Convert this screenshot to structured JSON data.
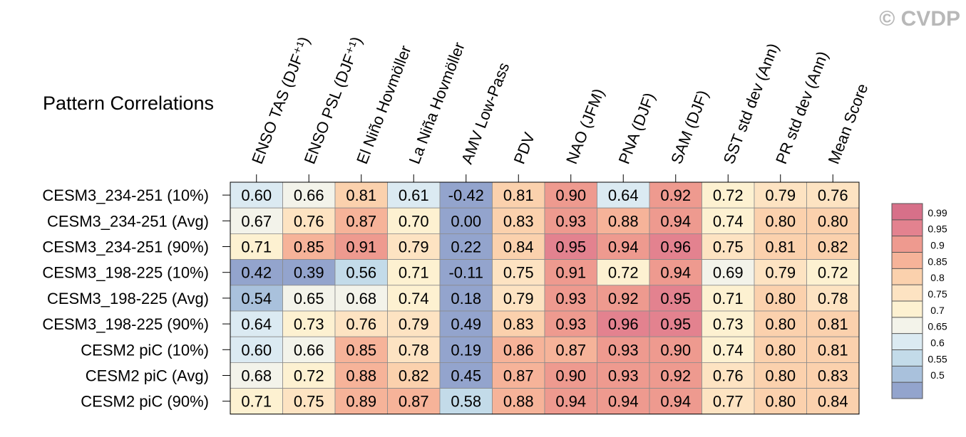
{
  "watermark": "© CVDP",
  "chart_data": {
    "type": "heatmap",
    "title": "Pattern Correlations",
    "columns": [
      "ENSO TAS (DJF⁺¹)",
      "ENSO PSL (DJF⁺¹)",
      "El Niño Hovmöller",
      "La Niña Hovmöller",
      "AMV Low-Pass",
      "PDV",
      "NAO (JFM)",
      "PNA (DJF)",
      "SAM (DJF)",
      "SST std dev (Ann)",
      "PR std dev (Ann)",
      "Mean Score"
    ],
    "rows": [
      "CESM3_234-251 (10%)",
      "CESM3_234-251 (Avg)",
      "CESM3_234-251 (90%)",
      "CESM3_198-225 (10%)",
      "CESM3_198-225 (Avg)",
      "CESM3_198-225 (90%)",
      "CESM2 piC (10%)",
      "CESM2 piC (Avg)",
      "CESM2 piC (90%)"
    ],
    "values": [
      [
        0.6,
        0.66,
        0.81,
        0.61,
        -0.42,
        0.81,
        0.9,
        0.64,
        0.92,
        0.72,
        0.79,
        0.76
      ],
      [
        0.67,
        0.76,
        0.87,
        0.7,
        0.0,
        0.83,
        0.93,
        0.88,
        0.94,
        0.74,
        0.8,
        0.8
      ],
      [
        0.71,
        0.85,
        0.91,
        0.79,
        0.22,
        0.84,
        0.95,
        0.94,
        0.96,
        0.75,
        0.81,
        0.82
      ],
      [
        0.42,
        0.39,
        0.56,
        0.71,
        -0.11,
        0.75,
        0.91,
        0.72,
        0.94,
        0.69,
        0.79,
        0.72
      ],
      [
        0.54,
        0.65,
        0.68,
        0.74,
        0.18,
        0.79,
        0.93,
        0.92,
        0.95,
        0.71,
        0.8,
        0.78
      ],
      [
        0.64,
        0.73,
        0.76,
        0.79,
        0.49,
        0.83,
        0.93,
        0.96,
        0.95,
        0.73,
        0.8,
        0.81
      ],
      [
        0.6,
        0.66,
        0.85,
        0.78,
        0.19,
        0.86,
        0.87,
        0.93,
        0.9,
        0.74,
        0.8,
        0.81
      ],
      [
        0.68,
        0.72,
        0.88,
        0.82,
        0.45,
        0.87,
        0.9,
        0.93,
        0.92,
        0.76,
        0.8,
        0.83
      ],
      [
        0.71,
        0.75,
        0.89,
        0.87,
        0.58,
        0.88,
        0.94,
        0.94,
        0.94,
        0.77,
        0.8,
        0.84
      ]
    ],
    "colorbar": {
      "labels": [
        "0.99",
        "0.95",
        "0.9",
        "0.85",
        "0.8",
        "0.75",
        "0.7",
        "0.65",
        "0.6",
        "0.55",
        "0.5"
      ],
      "thresholds": [
        0.5,
        0.55,
        0.6,
        0.65,
        0.7,
        0.75,
        0.8,
        0.85,
        0.9,
        0.95,
        0.99
      ],
      "colors": [
        "#93a4cd",
        "#a9c1dc",
        "#c3dbe9",
        "#dbeaf2",
        "#f3f3ea",
        "#fdf1d1",
        "#fde3c2",
        "#fbd1ad",
        "#f6b399",
        "#ee9a8f",
        "#e3828f",
        "#d77089"
      ]
    }
  }
}
